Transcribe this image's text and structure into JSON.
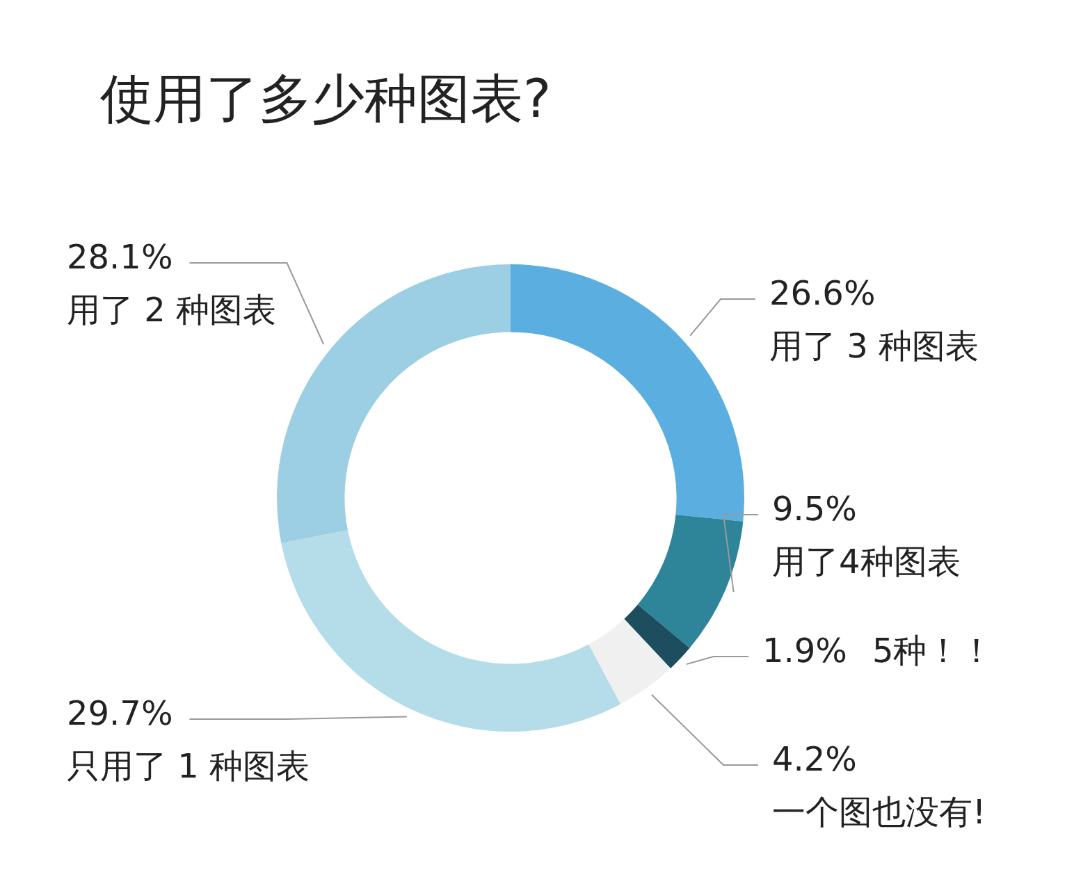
{
  "chart_data": {
    "type": "donut",
    "title": "使用了多少种图表?",
    "categories": [
      "用了 3 种图表",
      "用了4种图表",
      "5种！！",
      "一个图也没有!",
      "只用了 1 种图表",
      "用了 2 种图表"
    ],
    "values": [
      26.6,
      9.5,
      1.9,
      4.2,
      29.7,
      28.1
    ],
    "colors": [
      "#5aaee0",
      "#2e8499",
      "#1d4e5f",
      "#f0f0f0",
      "#b5dde9",
      "#9ccfe3"
    ],
    "value_labels": [
      "26.6%",
      "9.5%",
      "1.9%",
      "4.2%",
      "29.7%",
      "28.1%"
    ],
    "legend": false
  }
}
